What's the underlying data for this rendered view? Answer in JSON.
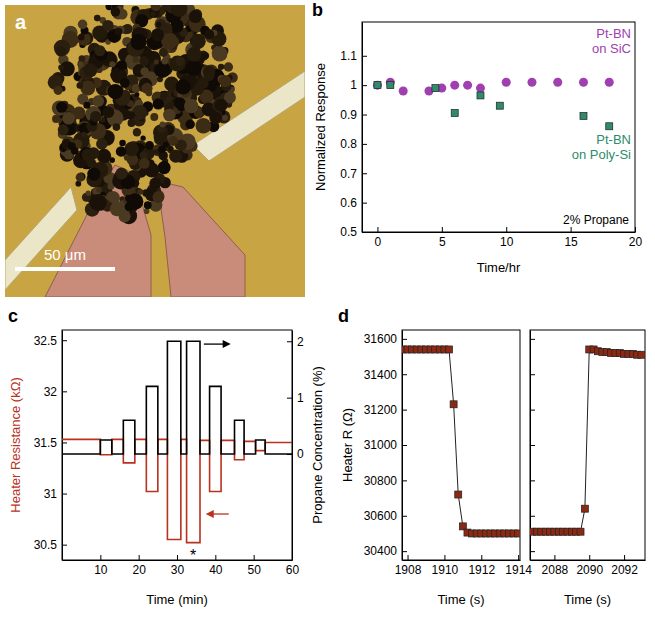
{
  "chart_data": [
    {
      "type": "image",
      "panel": "a",
      "scale_bar": "50 μm"
    },
    {
      "type": "scatter",
      "panel": "b",
      "xlabel": "Time/hr",
      "ylabel": "Normalized Response",
      "annotation": "2% Propane",
      "xlim": [
        -1.2,
        20
      ],
      "xticks": [
        0,
        5,
        10,
        15,
        20
      ],
      "ylim": [
        0.5,
        1.215
      ],
      "yticks": [
        0.5,
        0.6,
        0.7,
        0.8,
        0.9,
        1,
        1.1
      ],
      "series": [
        {
          "name": "Pt-BN on SiC",
          "color": "#a040b0",
          "marker": "circle",
          "x": [
            0,
            1,
            2,
            4,
            5,
            6,
            7,
            8,
            10,
            12,
            14,
            16,
            18
          ],
          "values": [
            1,
            1.01,
            0.98,
            0.98,
            0.99,
            1,
            1,
            0.99,
            1.01,
            1.01,
            1.01,
            1.01,
            1.01
          ]
        },
        {
          "name": "Pt-BN on Poly-Si",
          "color": "#2e8b6b",
          "marker": "square",
          "x": [
            0,
            1,
            4.5,
            6,
            8,
            9.5,
            16,
            18
          ],
          "values": [
            1,
            1,
            0.99,
            0.905,
            0.965,
            0.93,
            0.895,
            0.86
          ]
        }
      ]
    },
    {
      "type": "line",
      "panel": "c",
      "xlabel": "Time (min)",
      "ylabel": "Heater Resistance (kΩ)",
      "y2label": "Propane Concentration (%)",
      "annotation": {
        "text": "*",
        "x": 34.2,
        "y": 30.45
      },
      "xlim": [
        0,
        60
      ],
      "xticks": [
        10,
        20,
        30,
        40,
        50,
        60
      ],
      "ylim": [
        30.35,
        32.6
      ],
      "yticks": [
        30.5,
        31,
        31.5,
        32,
        32.5
      ],
      "y2lim": [
        -1.88,
        2.2
      ],
      "y2ticks": [
        0,
        1,
        2
      ],
      "series": [
        {
          "color": "#b8321e",
          "line_style": "step",
          "x": [
            0,
            10,
            13,
            16,
            19,
            22,
            25,
            27.5,
            31,
            32.5,
            36,
            38.5,
            41.5,
            45,
            47.5,
            50.5,
            53,
            60
          ],
          "values": [
            31.53,
            31.38,
            31.53,
            31.3,
            31.53,
            31.02,
            31.53,
            30.55,
            31.53,
            30.52,
            31.52,
            31.02,
            31.52,
            31.33,
            31.51,
            31.42,
            31.5,
            31.5
          ]
        },
        {
          "color": "#000000",
          "line_style": "step",
          "axis": "y2",
          "x": [
            0,
            10,
            13,
            16,
            19,
            22,
            25,
            27.5,
            31,
            32.5,
            36,
            38.5,
            41.5,
            45,
            47.5,
            50.5,
            53,
            60
          ],
          "values": [
            0,
            0.25,
            0,
            0.6,
            0,
            1.2,
            0,
            2,
            0,
            2,
            0,
            1.2,
            0,
            0.6,
            0,
            0.25,
            0,
            0
          ]
        }
      ]
    },
    {
      "type": "line",
      "panel": "d",
      "xlabel": "Time (s)",
      "ylabel": "Heater R (Ω)",
      "xlim": [
        1907.7,
        1914.1
      ],
      "xticks": [
        1908,
        1910,
        1912,
        1914
      ],
      "ylim": [
        30350,
        31650
      ],
      "yticks": [
        30400,
        30600,
        30800,
        31000,
        31200,
        31400,
        31600
      ],
      "series": [
        {
          "color": "#8b2a14",
          "marker": "square",
          "x": [
            1907.75,
            1908,
            1908.25,
            1908.5,
            1908.75,
            1909,
            1909.25,
            1909.5,
            1909.75,
            1910,
            1910.25,
            1910.5,
            1910.75,
            1911,
            1911.25,
            1911.5,
            1911.75,
            1912,
            1912.25,
            1912.5,
            1912.75,
            1913,
            1913.25,
            1913.5,
            1913.75,
            1914
          ],
          "values": [
            31540,
            31540,
            31540,
            31540,
            31540,
            31540,
            31540,
            31540,
            31540,
            31540,
            31540,
            31230,
            30720,
            30540,
            30505,
            30500,
            30500,
            30500,
            30500,
            30500,
            30500,
            30500,
            30500,
            30500,
            30500,
            30500
          ]
        }
      ]
    },
    {
      "type": "line",
      "xlabel": "Time (s)",
      "tick_labels": "x",
      "xlim": [
        2086.6,
        2093.2
      ],
      "xticks": [
        2088,
        2090,
        2092
      ],
      "ylim": [
        30350,
        31650
      ],
      "yticks": [
        30400,
        30600,
        30800,
        31000,
        31200,
        31400,
        31600
      ],
      "series": [
        {
          "color": "#8b2a14",
          "marker": "square",
          "x": [
            2086.75,
            2087,
            2087.25,
            2087.5,
            2087.75,
            2088,
            2088.25,
            2088.5,
            2088.75,
            2089,
            2089.25,
            2089.5,
            2089.75,
            2090,
            2090.25,
            2090.5,
            2090.75,
            2091,
            2091.25,
            2091.5,
            2091.75,
            2092,
            2092.25,
            2092.5,
            2092.75,
            2093
          ],
          "values": [
            30510,
            30510,
            30510,
            30510,
            30510,
            30510,
            30510,
            30510,
            30510,
            30510,
            30510,
            30510,
            30640,
            31540,
            31540,
            31530,
            31525,
            31525,
            31520,
            31520,
            31520,
            31515,
            31515,
            31515,
            31510,
            31510
          ]
        }
      ]
    }
  ]
}
